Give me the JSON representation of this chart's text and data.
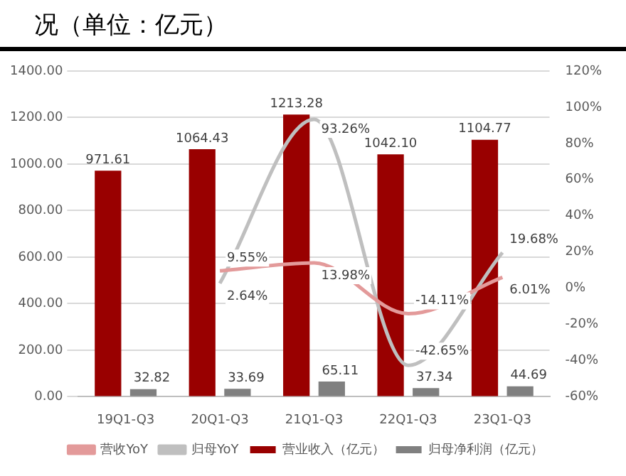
{
  "chart_data": {
    "type": "bar",
    "title": "况（单位：亿元）",
    "categories": [
      "19Q1-Q3",
      "20Q1-Q3",
      "21Q1-Q3",
      "22Q1-Q3",
      "23Q1-Q3"
    ],
    "series": [
      {
        "name": "营业收入（亿元）",
        "color": "#990000",
        "values": [
          971.61,
          1064.43,
          1213.28,
          1042.1,
          1104.77
        ],
        "value_labels": [
          "971.61",
          "1064.43",
          "1213.28",
          "1042.10",
          "1104.77"
        ]
      },
      {
        "name": "归母净利润（亿元）",
        "color": "#808080",
        "values": [
          32.82,
          33.69,
          65.11,
          37.34,
          44.69
        ],
        "value_labels": [
          "32.82",
          "33.69",
          "65.11",
          "37.34",
          "44.69"
        ]
      },
      {
        "name": "营收YoY",
        "type": "line",
        "axis": "y2",
        "color": "#e39a9a",
        "values": [
          null,
          9.55,
          13.98,
          -14.11,
          6.01
        ],
        "value_labels": [
          null,
          "9.55%",
          "13.98%",
          "-14.11%",
          "6.01%"
        ]
      },
      {
        "name": "归母YoY",
        "type": "line",
        "axis": "y2",
        "color": "#bfbfbf",
        "values": [
          null,
          2.64,
          93.26,
          -42.65,
          19.68
        ],
        "value_labels": [
          null,
          "2.64%",
          "93.26%",
          "-42.65%",
          "19.68%"
        ]
      }
    ],
    "ylim": [
      0,
      1400
    ],
    "yticks": [
      {
        "value": 0,
        "label": "0.00"
      },
      {
        "value": 200,
        "label": "200.00"
      },
      {
        "value": 400,
        "label": "400.00"
      },
      {
        "value": 600,
        "label": "600.00"
      },
      {
        "value": 800,
        "label": "800.00"
      },
      {
        "value": 1000,
        "label": "1000.00"
      },
      {
        "value": 1200,
        "label": "1200.00"
      },
      {
        "value": 1400,
        "label": "1400.00"
      }
    ],
    "y2lim": [
      -60,
      120
    ],
    "y2ticks": [
      {
        "value": -60,
        "label": "-60%"
      },
      {
        "value": -40,
        "label": "-40%"
      },
      {
        "value": -20,
        "label": "-20%"
      },
      {
        "value": 0,
        "label": "0%"
      },
      {
        "value": 20,
        "label": "20%"
      },
      {
        "value": 40,
        "label": "40%"
      },
      {
        "value": 60,
        "label": "60%"
      },
      {
        "value": 80,
        "label": "80%"
      },
      {
        "value": 100,
        "label": "100%"
      },
      {
        "value": 120,
        "label": "120%"
      }
    ],
    "grid": "y",
    "legend": "bottom",
    "marker": "none",
    "line_style": "solid"
  }
}
